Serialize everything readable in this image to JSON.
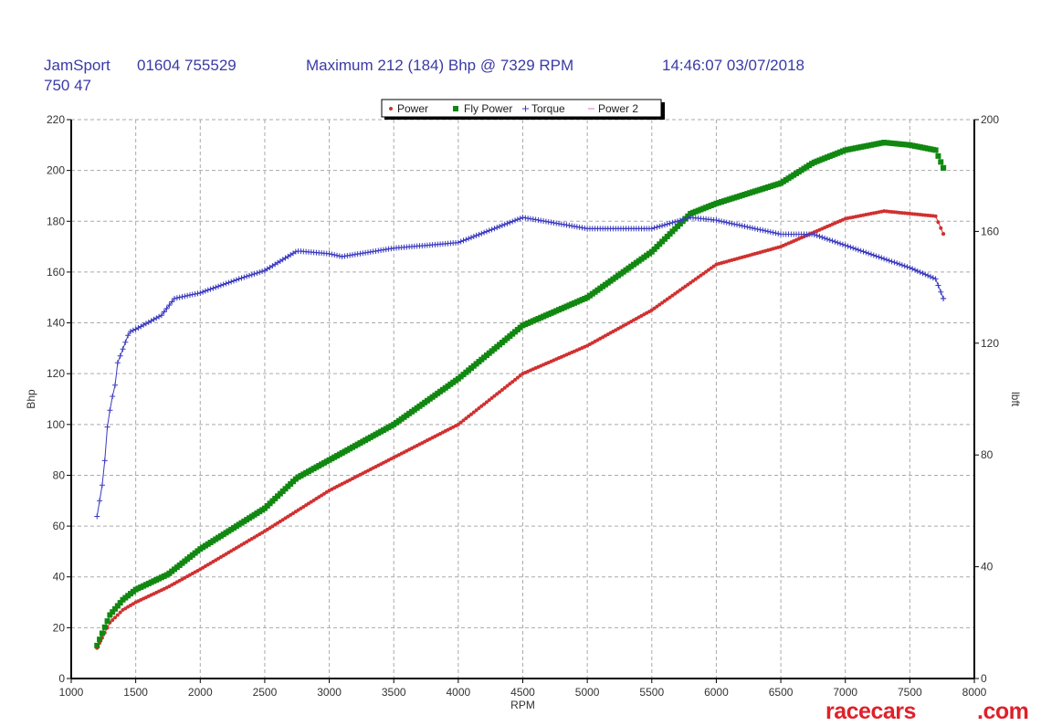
{
  "header": {
    "company": "JamSport",
    "phone": "01604 755529",
    "phone_cont": "750 47",
    "maximum": "Maximum 212 (184) Bhp @ 7329 RPM",
    "timestamp": "14:46:07 03/07/2018"
  },
  "watermark": {
    "left": "racecars",
    "right": ".com"
  },
  "colors": {
    "power": "#d03030",
    "fly_power": "#118811",
    "torque": "#3a3ac0",
    "power2": "#e070c0",
    "header": "#3a3aa8"
  },
  "chart_data": {
    "type": "line",
    "xlabel": "RPM",
    "ylabel": "Bhp",
    "y2label": "lbft",
    "xlim": [
      1000,
      8000
    ],
    "ylim": [
      0,
      220
    ],
    "y2lim": [
      0,
      200
    ],
    "grid": true,
    "legend_placement": "top-center",
    "x_ticks": [
      1000,
      1500,
      2000,
      2500,
      3000,
      3500,
      4000,
      4500,
      5000,
      5500,
      6000,
      6500,
      7000,
      7500,
      8000
    ],
    "y_ticks": [
      0,
      20,
      40,
      60,
      80,
      100,
      120,
      140,
      160,
      180,
      200,
      220
    ],
    "y2_ticks": [
      0,
      40,
      80,
      120,
      160,
      200
    ],
    "series": [
      {
        "name": "Power",
        "axis": "left",
        "marker": "dot",
        "x": [
          1200,
          1250,
          1300,
          1400,
          1500,
          1750,
          2000,
          2500,
          3000,
          3500,
          4000,
          4500,
          5000,
          5500,
          6000,
          6500,
          7000,
          7300,
          7500,
          7700,
          7760
        ],
        "y": [
          12,
          17,
          22,
          27,
          30,
          36,
          43,
          58,
          74,
          87,
          100,
          120,
          131,
          145,
          163,
          170,
          181,
          184,
          183,
          182,
          175
        ]
      },
      {
        "name": "Fly Power",
        "axis": "left",
        "marker": "square",
        "x": [
          1200,
          1300,
          1400,
          1500,
          1750,
          2000,
          2500,
          2750,
          3000,
          3500,
          4000,
          4500,
          5000,
          5500,
          5800,
          6000,
          6500,
          6750,
          7000,
          7300,
          7500,
          7700,
          7760
        ],
        "y": [
          13,
          25,
          31,
          35,
          41,
          51,
          67,
          79,
          86,
          100,
          118,
          139,
          150,
          168,
          183,
          187,
          195,
          203,
          208,
          211,
          210,
          208,
          201
        ]
      },
      {
        "name": "Torque",
        "axis": "right",
        "marker": "plus",
        "x": [
          1200,
          1250,
          1280,
          1310,
          1340,
          1360,
          1450,
          1500,
          1700,
          1800,
          2000,
          2300,
          2500,
          2750,
          3000,
          3100,
          3500,
          4000,
          4500,
          5000,
          5500,
          5800,
          6000,
          6500,
          6750,
          7000,
          7500,
          7700,
          7760
        ],
        "y": [
          58,
          72,
          90,
          99,
          105,
          113,
          124,
          125,
          130,
          136,
          138,
          143,
          146,
          153,
          152,
          151,
          154,
          156,
          165,
          161,
          161,
          165,
          164,
          159,
          159,
          155,
          147,
          143,
          136
        ]
      },
      {
        "name": "Power 2",
        "axis": "left",
        "marker": "dash",
        "x": [],
        "y": []
      }
    ]
  }
}
